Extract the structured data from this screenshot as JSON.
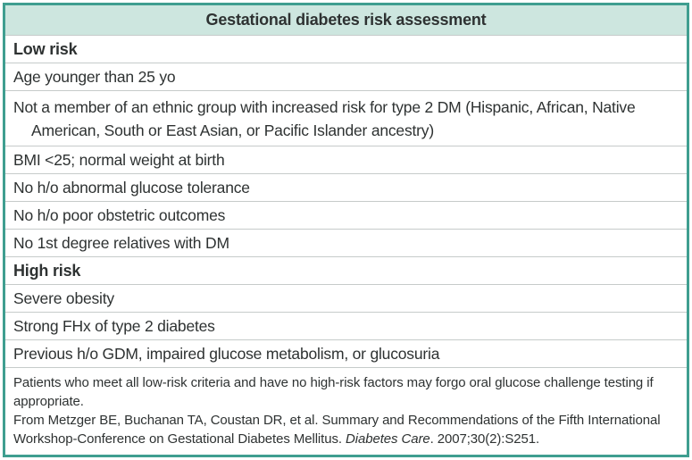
{
  "title": "Gestational diabetes risk assessment",
  "rows": [
    {
      "text": "Low risk",
      "type": "section"
    },
    {
      "text": "Age younger than 25 yo",
      "type": "item"
    },
    {
      "text": "Not a member of an ethnic group with increased risk for type 2 DM (Hispanic, African, Native American, South or East Asian, or Pacific Islander ancestry)",
      "type": "item-wrap"
    },
    {
      "text": "BMI <25; normal weight at birth",
      "type": "item"
    },
    {
      "text": "No h/o abnormal glucose tolerance",
      "type": "item"
    },
    {
      "text": "No h/o poor obstetric outcomes",
      "type": "item"
    },
    {
      "text": "No 1st degree relatives with DM",
      "type": "item"
    },
    {
      "text": "High risk",
      "type": "section"
    },
    {
      "text": "Severe obesity",
      "type": "item"
    },
    {
      "text": "Strong FHx of type 2 diabetes",
      "type": "item"
    },
    {
      "text": "Previous h/o GDM, impaired glucose metabolism, or glucosuria",
      "type": "item"
    }
  ],
  "footnote": {
    "note": "Patients who meet all low-risk criteria and have no high-risk factors may forgo oral glucose challenge testing if appropriate.",
    "citation_before": "From Metzger BE, Buchanan TA, Coustan DR, et al. Summary and Recommendations of the Fifth International Workshop-Conference on Gestational Diabetes Mellitus. ",
    "citation_journal": "Diabetes Care",
    "citation_after": ". 2007;30(2):S251."
  },
  "colors": {
    "border_teal": "#3f9e90",
    "header_bg": "#cde6df",
    "divider": "#c6cbca",
    "text": "#2e3232"
  }
}
